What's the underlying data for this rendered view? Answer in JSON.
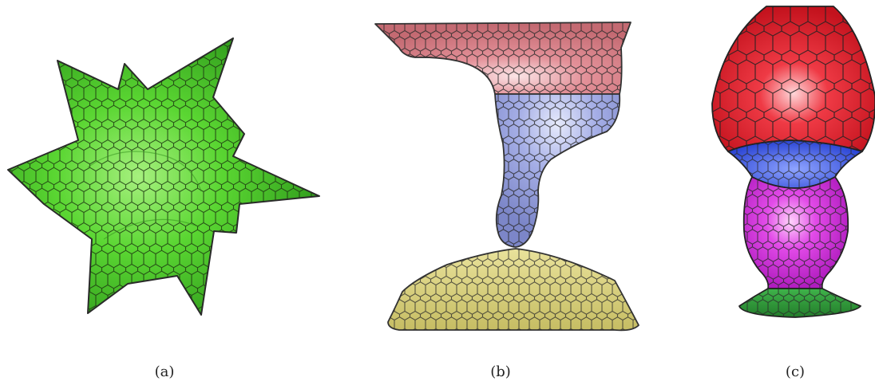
{
  "figure": {
    "panels": [
      {
        "id": "a",
        "caption": "(a)",
        "shape": "star-shaped hexagonal mesh",
        "colors": [
          "#4fd229"
        ]
      },
      {
        "id": "b",
        "caption": "(b)",
        "shape": "pillar / pinch-off hexagonal mesh",
        "colors": [
          "#e2868f",
          "#a4aee6",
          "#d5cd74"
        ]
      },
      {
        "id": "c",
        "caption": "(c)",
        "shape": "vase hexagonal mesh",
        "colors": [
          "#e8202d",
          "#2e4de0",
          "#d930e3",
          "#2c9a36"
        ]
      }
    ]
  }
}
